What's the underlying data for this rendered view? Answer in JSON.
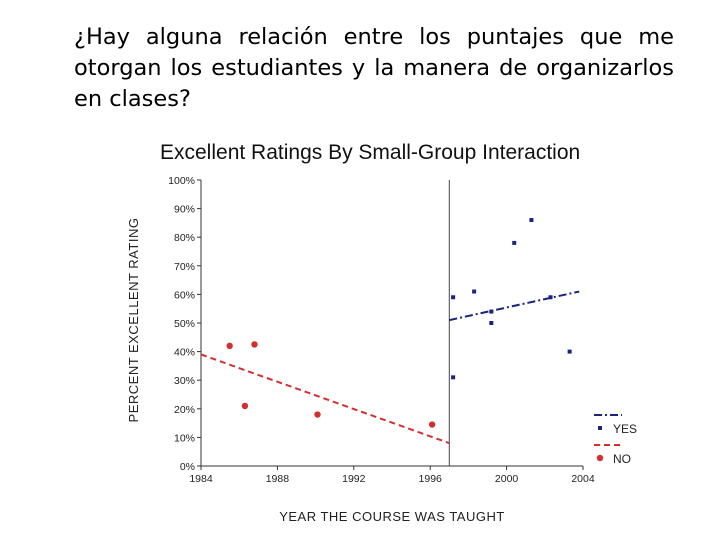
{
  "slide": {
    "question": "¿Hay alguna relación entre los puntajes que me otorgan los estudiantes y la manera de organizarlos en clases?"
  },
  "chart_data": {
    "type": "scatter",
    "title": "Excellent Ratings By Small-Group Interaction",
    "xlabel": "YEAR THE COURSE WAS TAUGHT",
    "ylabel": "PERCENT EXCELLENT RATING",
    "xlim": [
      1984,
      2004
    ],
    "ylim": [
      0,
      100
    ],
    "x_ticks": [
      "1984",
      "1988",
      "1992",
      "1996",
      "2000",
      "2004"
    ],
    "y_ticks": [
      "0%",
      "10%",
      "20%",
      "30%",
      "40%",
      "50%",
      "60%",
      "70%",
      "80%",
      "90%",
      "100%"
    ],
    "grid": false,
    "legend_position": "bottom-right",
    "vertical_marker_x": 1997.0,
    "series": [
      {
        "name": "YES",
        "color": "#1a237e",
        "marker": "square",
        "points": [
          {
            "x": 1997.2,
            "y": 59
          },
          {
            "x": 1997.2,
            "y": 31
          },
          {
            "x": 1998.3,
            "y": 61
          },
          {
            "x": 1999.2,
            "y": 50
          },
          {
            "x": 1999.2,
            "y": 54
          },
          {
            "x": 2000.4,
            "y": 78
          },
          {
            "x": 2001.3,
            "y": 86
          },
          {
            "x": 2002.3,
            "y": 59
          },
          {
            "x": 2003.3,
            "y": 40
          }
        ],
        "trend": {
          "style": "dash-dot",
          "x": [
            1997.0,
            2003.8
          ],
          "y": [
            51,
            61
          ]
        }
      },
      {
        "name": "NO",
        "color": "#d32f2f",
        "marker": "circle",
        "points": [
          {
            "x": 1985.5,
            "y": 42
          },
          {
            "x": 1986.3,
            "y": 21
          },
          {
            "x": 1986.8,
            "y": 42.5
          },
          {
            "x": 1990.1,
            "y": 18
          },
          {
            "x": 1996.1,
            "y": 14.5
          }
        ],
        "trend": {
          "style": "dashed",
          "x": [
            1984,
            1997.0
          ],
          "y": [
            39,
            8
          ]
        }
      }
    ]
  }
}
